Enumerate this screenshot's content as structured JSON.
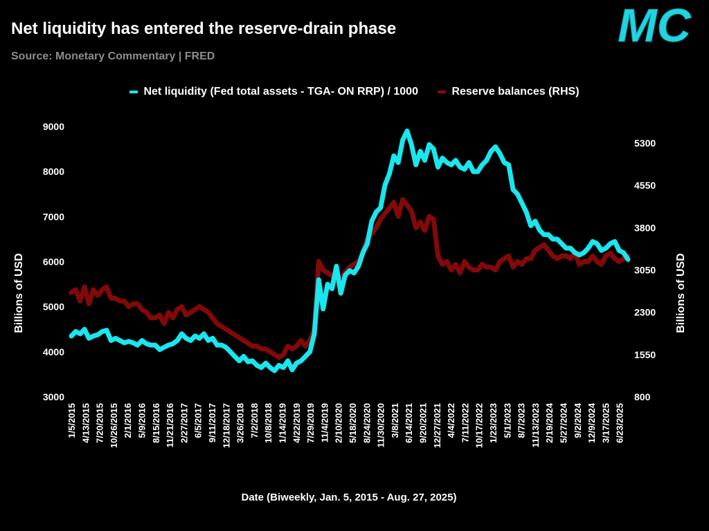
{
  "header": {
    "title": "Net liquidity has entered the reserve-drain phase",
    "subtitle": "Source: Monetary Commentary | FRED",
    "logo_text": "MC"
  },
  "colors": {
    "net_liquidity": "#19e6ee",
    "reserves": "#8a0a0a",
    "logo": "#22d3e0",
    "subtitle": "#8c8c8c"
  },
  "chart_data": {
    "type": "line",
    "title": "Net liquidity has entered the reserve-drain phase",
    "xlabel": "Date (Biweekly, Jan. 5, 2015 - Aug. 27, 2025)",
    "ylabel": "Billions of USD",
    "y2label": "Billions of USD",
    "ylim": [
      3000,
      9000
    ],
    "y2lim": [
      800,
      5300
    ],
    "yticks": [
      "3000",
      "4000",
      "5000",
      "6000",
      "7000",
      "8000",
      "9000"
    ],
    "y2ticks": [
      "800",
      "1550",
      "2300",
      "3050",
      "3800",
      "4550",
      "5300"
    ],
    "xticks": [
      "1/5/2015",
      "4/13/2015",
      "7/20/2015",
      "10/26/2015",
      "2/1/2016",
      "5/9/2016",
      "8/15/2016",
      "11/21/2016",
      "2/27/2017",
      "6/5/2017",
      "9/11/2017",
      "12/18/2017",
      "3/26/2018",
      "7/2/2018",
      "10/8/2018",
      "1/14/2019",
      "4/22/2019",
      "7/29/2019",
      "11/4/2019",
      "2/10/2020",
      "5/18/2020",
      "8/24/2020",
      "11/30/2020",
      "3/8/2021",
      "6/14/2021",
      "9/20/2021",
      "12/27/2021",
      "4/4/2022",
      "7/11/2022",
      "10/17/2022",
      "1/23/2023",
      "5/1/2023",
      "8/7/2023",
      "11/13/2023",
      "2/19/2024",
      "5/27/2024",
      "9/2/2024",
      "12/9/2024",
      "3/17/2025",
      "6/23/2025"
    ],
    "legend": [
      "Net liquidity (Fed total assets - TGA- ON RRP) / 1000",
      "Reserve balances (RHS)"
    ],
    "legend_position": "top-center",
    "series": [
      {
        "name": "Net liquidity (Fed total assets - TGA- ON RRP) / 1000",
        "axis": "left",
        "values": [
          4350,
          4450,
          4400,
          4500,
          4300,
          4350,
          4380,
          4450,
          4480,
          4250,
          4300,
          4250,
          4200,
          4230,
          4200,
          4150,
          4250,
          4180,
          4150,
          4150,
          4050,
          4100,
          4150,
          4180,
          4250,
          4400,
          4300,
          4250,
          4350,
          4300,
          4400,
          4250,
          4300,
          4150,
          4150,
          4100,
          4000,
          3900,
          3800,
          3900,
          3780,
          3800,
          3700,
          3650,
          3750,
          3650,
          3580,
          3700,
          3650,
          3800,
          3600,
          3750,
          3800,
          3900,
          4000,
          4400,
          5600,
          4950,
          5500,
          5400,
          5900,
          5300,
          5700,
          5800,
          5750,
          5900,
          6200,
          6400,
          6900,
          7100,
          7200,
          7700,
          7950,
          8350,
          8200,
          8700,
          8900,
          8600,
          8150,
          8450,
          8250,
          8600,
          8500,
          8100,
          8300,
          8200,
          8150,
          8250,
          8100,
          8050,
          8200,
          8000,
          8000,
          8150,
          8250,
          8450,
          8550,
          8400,
          8200,
          8150,
          7600,
          7500,
          7300,
          7100,
          6800,
          6900,
          6700,
          6600,
          6600,
          6500,
          6500,
          6400,
          6300,
          6300,
          6200,
          6150,
          6200,
          6300,
          6450,
          6400,
          6250,
          6300,
          6400,
          6450,
          6250,
          6200,
          6050
        ]
      },
      {
        "name": "Reserve balances (RHS)",
        "axis": "right",
        "values": [
          2650,
          2700,
          2500,
          2750,
          2450,
          2700,
          2600,
          2700,
          2750,
          2550,
          2550,
          2500,
          2500,
          2400,
          2450,
          2450,
          2350,
          2300,
          2200,
          2200,
          2250,
          2100,
          2300,
          2200,
          2350,
          2400,
          2250,
          2300,
          2350,
          2400,
          2350,
          2300,
          2200,
          2100,
          2050,
          2000,
          1950,
          1900,
          1850,
          1800,
          1750,
          1700,
          1700,
          1650,
          1650,
          1600,
          1550,
          1500,
          1550,
          1700,
          1650,
          1700,
          1800,
          1700,
          1800,
          2000,
          3200,
          3050,
          3000,
          2950,
          2800,
          2900,
          3000,
          3100,
          3150,
          3200,
          3350,
          3600,
          3700,
          3800,
          3950,
          4050,
          4150,
          4250,
          4000,
          4300,
          4200,
          4100,
          3800,
          3900,
          3750,
          4000,
          3950,
          3300,
          3150,
          3200,
          3050,
          3150,
          3000,
          3200,
          3100,
          3050,
          3050,
          3150,
          3100,
          3100,
          3050,
          3200,
          3250,
          3300,
          3100,
          3200,
          3150,
          3250,
          3250,
          3400,
          3450,
          3500,
          3400,
          3300,
          3250,
          3300,
          3300,
          3250,
          3350,
          3150,
          3200,
          3200,
          3300,
          3200,
          3150,
          3300,
          3350,
          3250,
          3200,
          3250,
          3300
        ]
      }
    ]
  }
}
